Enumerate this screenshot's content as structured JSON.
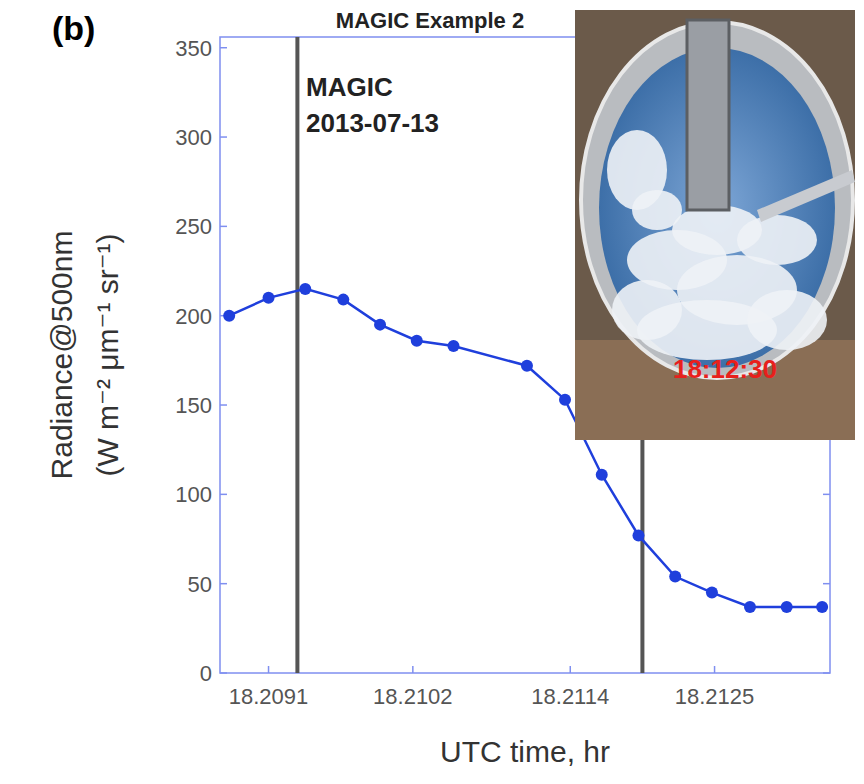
{
  "chart_data": {
    "type": "line",
    "panel": "(b)",
    "title": "MAGIC Example 2",
    "annotation": [
      "MAGIC",
      "2013-07-13"
    ],
    "inset_label": "18:12:30",
    "xlabel": "UTC time, hr",
    "ylabel": [
      "Radiance@500nm",
      "(W m⁻² μm⁻¹ sr⁻¹)"
    ],
    "x": [
      18.2088,
      18.2091,
      18.20938,
      18.20967,
      18.20995,
      18.21023,
      18.21051,
      18.21107,
      18.21136,
      18.21164,
      18.21192,
      18.2122,
      18.21248,
      18.21277,
      18.21305,
      18.21332
    ],
    "values": [
      200,
      210,
      215,
      209,
      195,
      186,
      183,
      172,
      153,
      111,
      77,
      54,
      45,
      37,
      37,
      37
    ],
    "vertical_lines": [
      18.20932,
      18.21195
    ],
    "color": "#1f3fdc",
    "marker": "circle",
    "line_style": "solid",
    "xlim": [
      18.20873,
      18.21338
    ],
    "xticks": [
      18.2091,
      18.2102,
      18.2114,
      18.2125
    ],
    "ylim": [
      0,
      356
    ],
    "yticks": [
      0,
      50,
      100,
      150,
      200,
      250,
      300,
      350
    ],
    "grid": false
  }
}
